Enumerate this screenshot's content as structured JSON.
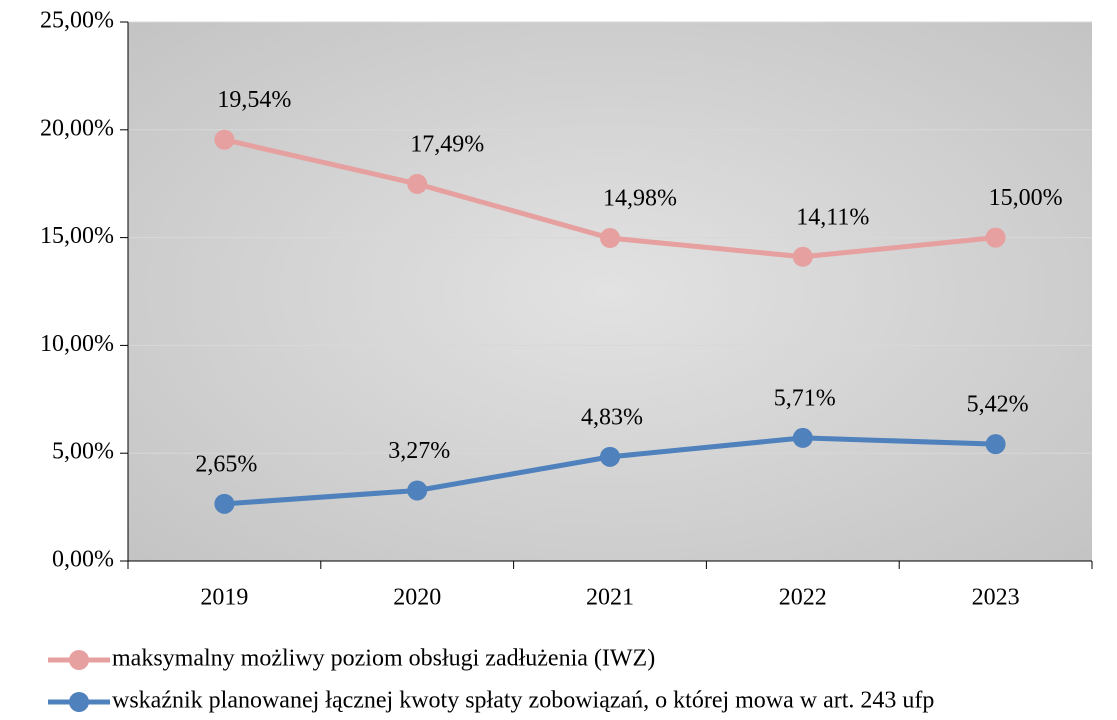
{
  "chart_data": {
    "type": "line",
    "categories": [
      "2019",
      "2020",
      "2021",
      "2022",
      "2023"
    ],
    "series": [
      {
        "name": "maksymalny możliwy poziom obsługi zadłużenia (IWZ)",
        "color": "#e6a0a0",
        "values": [
          19.54,
          17.49,
          14.98,
          14.11,
          15.0
        ],
        "value_labels": [
          "19,54%",
          "17,49%",
          "14,98%",
          "14,11%",
          "15,00%"
        ]
      },
      {
        "name": "wskaźnik planowanej łącznej kwoty spłaty zobowiązań, o której mowa w art. 243 ufp",
        "color": "#4f81bd",
        "values": [
          2.65,
          3.27,
          4.83,
          5.71,
          5.42
        ],
        "value_labels": [
          "2,65%",
          "3,27%",
          "4,83%",
          "5,71%",
          "5,42%"
        ]
      }
    ],
    "ylim": [
      0,
      25
    ],
    "yticks": [
      {
        "value": 0,
        "label": "0,00%"
      },
      {
        "value": 5,
        "label": "5,00%"
      },
      {
        "value": 10,
        "label": "10,00%"
      },
      {
        "value": 15,
        "label": "15,00%"
      },
      {
        "value": 20,
        "label": "20,00%"
      },
      {
        "value": 25,
        "label": "25,00%"
      }
    ],
    "grid": true
  }
}
